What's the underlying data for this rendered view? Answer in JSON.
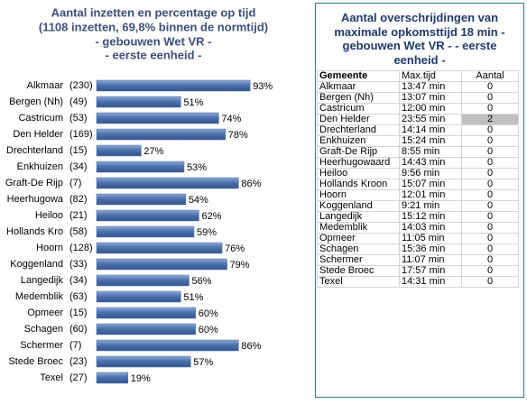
{
  "chart_data": {
    "type": "hbar",
    "title": "Aantal inzetten en percentage op tijd",
    "subtitle": [
      "(1108 inzetten, 69,8% binnen de normtijd)",
      "- gebouwen Wet VR -",
      "- eerste eenheid -"
    ],
    "categories": [
      "Alkmaar",
      "Bergen (Nh)",
      "Castricum",
      "Den Helder",
      "Drechterland",
      "Enkhuizen",
      "Graft-De Rijp",
      "Heerhugowa",
      "Heiloo",
      "Hollands Kro",
      "Hoorn",
      "Koggenland",
      "Langedijk",
      "Medemblik",
      "Opmeer",
      "Schagen",
      "Schermer",
      "Stede Broec",
      "Texel"
    ],
    "counts": [
      230,
      49,
      53,
      169,
      15,
      34,
      7,
      82,
      21,
      58,
      128,
      33,
      34,
      63,
      15,
      60,
      7,
      23,
      27
    ],
    "count_labels": [
      "(230)",
      "(49)",
      "(53)",
      "(169)",
      "(15)",
      "(34)",
      "(7)",
      "(82)",
      "(21)",
      "(58)",
      "(128)",
      "(33)",
      "(34)",
      "(63)",
      "(15)",
      "(60)",
      "(7)",
      "(23)",
      "(27)"
    ],
    "values": [
      93,
      51,
      74,
      78,
      27,
      53,
      86,
      54,
      62,
      59,
      76,
      79,
      56,
      51,
      60,
      60,
      86,
      57,
      19
    ],
    "value_labels": [
      "93%",
      "51%",
      "74%",
      "78%",
      "27%",
      "53%",
      "86%",
      "54%",
      "62%",
      "59%",
      "76%",
      "79%",
      "56%",
      "51%",
      "60%",
      "60%",
      "86%",
      "57%",
      "19%"
    ],
    "color": "#4d72ad"
  },
  "table": {
    "title_lines": [
      "Aantal overschrijdingen van",
      "maximale opkomsttijd 18 min -",
      "gebouwen Wet VR - - eerste",
      "eenheid -"
    ],
    "columns": [
      "Gemeente",
      "Max.tijd",
      "Aantal"
    ],
    "rows": [
      [
        "Alkmaar",
        "13:47 min",
        0
      ],
      [
        "Bergen (Nh)",
        "13:07 min",
        0
      ],
      [
        "Castricum",
        "12:00 min",
        0
      ],
      [
        "Den Helder",
        "23:55 min",
        2
      ],
      [
        "Drechterland",
        "14:14 min",
        0
      ],
      [
        "Enkhuizen",
        "15:24 min",
        0
      ],
      [
        "Graft-De Rijp",
        "8:55 min",
        0
      ],
      [
        "Heerhugowaard",
        "14:43 min",
        0
      ],
      [
        "Heiloo",
        "9:56 min",
        0
      ],
      [
        "Hollands Kroon",
        "15:07 min",
        0
      ],
      [
        "Hoorn",
        "12:01 min",
        0
      ],
      [
        "Koggenland",
        "9:21 min",
        0
      ],
      [
        "Langedijk",
        "15:12 min",
        0
      ],
      [
        "Medemblik",
        "14:03 min",
        0
      ],
      [
        "Opmeer",
        "11:05 min",
        0
      ],
      [
        "Schagen",
        "15:36 min",
        0
      ],
      [
        "Schermer",
        "11:07 min",
        0
      ],
      [
        "Stede Broec",
        "17:57 min",
        0
      ],
      [
        "Texel",
        "14:31 min",
        0
      ]
    ]
  }
}
